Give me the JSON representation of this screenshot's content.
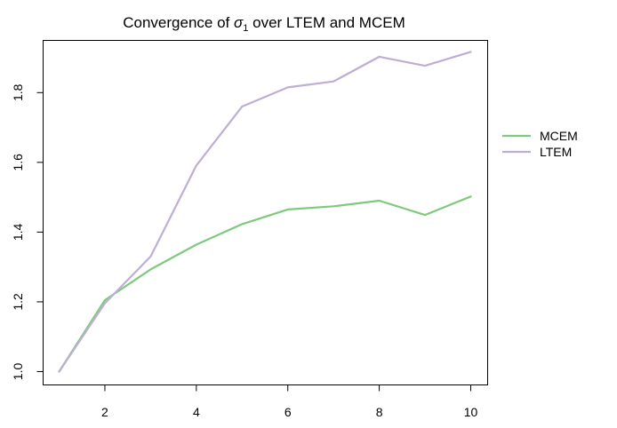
{
  "chart_data": {
    "type": "line",
    "title": {
      "prefix": "Convergence of ",
      "symbol": "σ",
      "subscript": "1",
      "suffix": " over LTEM and MCEM"
    },
    "xlabel": "",
    "ylabel": "",
    "x": [
      1,
      2,
      3,
      4,
      5,
      6,
      7,
      8,
      9,
      10
    ],
    "xlim": [
      0.64,
      10.36
    ],
    "ylim": [
      0.963,
      1.951
    ],
    "x_ticks": [
      2,
      4,
      6,
      8,
      10
    ],
    "y_ticks": [
      1.0,
      1.2,
      1.4,
      1.6,
      1.8
    ],
    "x_tick_labels": [
      "2",
      "4",
      "6",
      "8",
      "10"
    ],
    "y_tick_labels": [
      "1.0",
      "1.2",
      "1.4",
      "1.6",
      "1.8"
    ],
    "grid": false,
    "legend_position": "right",
    "series": [
      {
        "name": "MCEM",
        "color": "#7fc97f",
        "values": [
          1.0,
          1.205,
          1.293,
          1.364,
          1.423,
          1.465,
          1.474,
          1.49,
          1.449,
          1.502
        ]
      },
      {
        "name": "LTEM",
        "color": "#beaed4",
        "values": [
          1.0,
          1.196,
          1.33,
          1.591,
          1.76,
          1.815,
          1.832,
          1.903,
          1.877,
          1.917
        ]
      }
    ]
  }
}
